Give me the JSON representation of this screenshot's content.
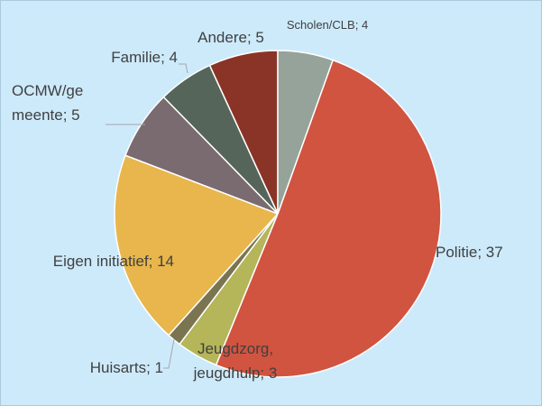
{
  "chart_data": {
    "type": "pie",
    "categories": [
      "Scholen/CLB",
      "Politie",
      "Jeugdzorg, jeugdhulp",
      "Huisarts",
      "Eigen initiatief",
      "OCMW/gemeente",
      "Familie",
      "Andere"
    ],
    "values": [
      4,
      37,
      3,
      1,
      14,
      5,
      4,
      5
    ],
    "colors": [
      "#95a39a",
      "#d05440",
      "#b5b55a",
      "#7a7550",
      "#e8b64c",
      "#7a6b70",
      "#56655a",
      "#8a3427"
    ],
    "label_separator": "; "
  }
}
